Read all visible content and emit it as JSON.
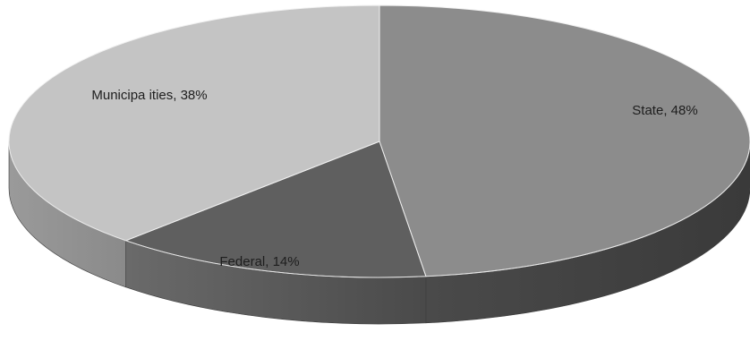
{
  "chart_data": {
    "type": "pie",
    "style": "3d",
    "title": "",
    "slices": [
      {
        "label": "State",
        "value": 48,
        "display": "State, 48%",
        "color": "#8c8c8c"
      },
      {
        "label": "Federal",
        "value": 14,
        "display": "Federal, 14%",
        "color": "#5f5f5f"
      },
      {
        "label": "Municipa ities",
        "value": 38,
        "display": "Municipa ities, 38%",
        "color": "#c4c4c4"
      }
    ],
    "legend": "none"
  }
}
